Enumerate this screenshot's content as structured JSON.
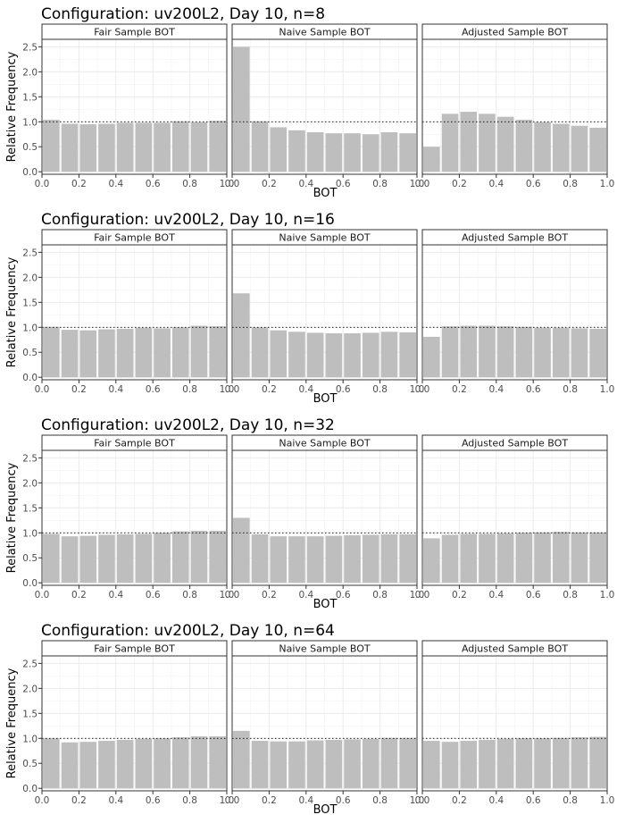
{
  "chart_data": [
    {
      "type": "bar",
      "title": "Configuration: uv200L2, Day 10, n=8",
      "xlabel": "BOT",
      "ylabel": "Relative Frequency",
      "xlim": [
        0,
        1
      ],
      "ylim": [
        -0.05,
        2.65
      ],
      "xticks": [
        "0.0",
        "0.2",
        "0.4",
        "0.6",
        "0.8",
        "1.0"
      ],
      "yticks": [
        "0.0",
        "0.5",
        "1.0",
        "1.5",
        "2.0",
        "2.5"
      ],
      "reference_line": 1.0,
      "grid": true,
      "bar_color": "#bebebe",
      "bins": [
        0.05,
        0.15,
        0.25,
        0.35,
        0.45,
        0.55,
        0.65,
        0.75,
        0.85,
        0.95
      ],
      "panels": [
        {
          "name": "Fair Sample BOT",
          "values": [
            1.04,
            0.96,
            0.95,
            0.96,
            0.98,
            0.98,
            0.98,
            1.01,
            0.99,
            1.02
          ]
        },
        {
          "name": "Naive Sample BOT",
          "values": [
            2.5,
            1.01,
            0.89,
            0.83,
            0.79,
            0.77,
            0.77,
            0.75,
            0.79,
            0.77
          ]
        },
        {
          "name": "Adjusted Sample BOT",
          "values": [
            0.5,
            1.16,
            1.2,
            1.16,
            1.1,
            1.04,
            0.99,
            0.96,
            0.92,
            0.88
          ]
        }
      ]
    },
    {
      "type": "bar",
      "title": "Configuration: uv200L2, Day 10, n=16",
      "xlabel": "BOT",
      "ylabel": "Relative Frequency",
      "xlim": [
        0,
        1
      ],
      "ylim": [
        -0.05,
        2.65
      ],
      "xticks": [
        "0.0",
        "0.2",
        "0.4",
        "0.6",
        "0.8",
        "1.0"
      ],
      "yticks": [
        "0.0",
        "0.5",
        "1.0",
        "1.5",
        "2.0",
        "2.5"
      ],
      "reference_line": 1.0,
      "grid": true,
      "bar_color": "#bebebe",
      "bins": [
        0.05,
        0.15,
        0.25,
        0.35,
        0.45,
        0.55,
        0.65,
        0.75,
        0.85,
        0.95
      ],
      "panels": [
        {
          "name": "Fair Sample BOT",
          "values": [
            1.01,
            0.95,
            0.94,
            0.96,
            0.97,
            0.99,
            0.98,
            1.0,
            1.03,
            1.02
          ]
        },
        {
          "name": "Naive Sample BOT",
          "values": [
            1.68,
            1.0,
            0.94,
            0.91,
            0.89,
            0.88,
            0.88,
            0.89,
            0.91,
            0.9
          ]
        },
        {
          "name": "Adjusted Sample BOT",
          "values": [
            0.81,
            1.02,
            1.03,
            1.03,
            1.02,
            1.01,
            0.99,
            0.99,
            0.98,
            0.97
          ]
        }
      ]
    },
    {
      "type": "bar",
      "title": "Configuration: uv200L2, Day 10, n=32",
      "xlabel": "BOT",
      "ylabel": "Relative Frequency",
      "xlim": [
        0,
        1
      ],
      "ylim": [
        -0.05,
        2.65
      ],
      "xticks": [
        "0.0",
        "0.2",
        "0.4",
        "0.6",
        "0.8",
        "1.0"
      ],
      "yticks": [
        "0.0",
        "0.5",
        "1.0",
        "1.5",
        "2.0",
        "2.5"
      ],
      "reference_line": 1.0,
      "grid": true,
      "bar_color": "#bebebe",
      "bins": [
        0.05,
        0.15,
        0.25,
        0.35,
        0.45,
        0.55,
        0.65,
        0.75,
        0.85,
        0.95
      ],
      "panels": [
        {
          "name": "Fair Sample BOT",
          "values": [
            0.98,
            0.93,
            0.94,
            0.96,
            0.97,
            0.98,
            1.0,
            1.03,
            1.04,
            1.04
          ]
        },
        {
          "name": "Naive Sample BOT",
          "values": [
            1.3,
            0.97,
            0.93,
            0.93,
            0.93,
            0.94,
            0.95,
            0.96,
            0.97,
            0.97
          ]
        },
        {
          "name": "Adjusted Sample BOT",
          "values": [
            0.89,
            0.96,
            0.98,
            0.98,
            0.99,
            1.0,
            1.01,
            1.02,
            1.01,
            1.01
          ]
        }
      ]
    },
    {
      "type": "bar",
      "title": "Configuration: uv200L2, Day 10, n=64",
      "xlabel": "BOT",
      "ylabel": "Relative Frequency",
      "xlim": [
        0,
        1
      ],
      "ylim": [
        -0.05,
        2.65
      ],
      "xticks": [
        "0.0",
        "0.2",
        "0.4",
        "0.6",
        "0.8",
        "1.0"
      ],
      "yticks": [
        "0.0",
        "0.5",
        "1.0",
        "1.5",
        "2.0",
        "2.5"
      ],
      "reference_line": 1.0,
      "grid": true,
      "bar_color": "#bebebe",
      "bins": [
        0.05,
        0.15,
        0.25,
        0.35,
        0.45,
        0.55,
        0.65,
        0.75,
        0.85,
        0.95
      ],
      "panels": [
        {
          "name": "Fair Sample BOT",
          "values": [
            1.0,
            0.92,
            0.93,
            0.95,
            0.97,
            0.99,
            1.0,
            1.02,
            1.04,
            1.04
          ]
        },
        {
          "name": "Naive Sample BOT",
          "values": [
            1.15,
            0.95,
            0.94,
            0.94,
            0.96,
            0.97,
            0.98,
            0.99,
            1.01,
            1.01
          ]
        },
        {
          "name": "Adjusted Sample BOT",
          "values": [
            0.95,
            0.93,
            0.95,
            0.97,
            0.99,
            1.0,
            1.0,
            1.01,
            1.02,
            1.03
          ]
        }
      ]
    }
  ]
}
